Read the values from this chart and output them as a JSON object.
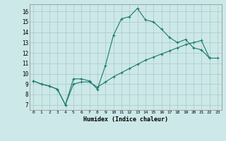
{
  "title": "",
  "xlabel": "Humidex (Indice chaleur)",
  "background_color": "#cce8e8",
  "grid_color": "#aac8c8",
  "line_color": "#1a7a6e",
  "xlim": [
    -0.5,
    23.5
  ],
  "ylim": [
    6.5,
    16.7
  ],
  "yticks": [
    7,
    8,
    9,
    10,
    11,
    12,
    13,
    14,
    15,
    16
  ],
  "xticks": [
    0,
    1,
    2,
    3,
    4,
    5,
    6,
    7,
    8,
    9,
    10,
    11,
    12,
    13,
    14,
    15,
    16,
    17,
    18,
    19,
    20,
    21,
    22,
    23
  ],
  "series1_x": [
    0,
    1,
    2,
    3,
    4,
    5,
    6,
    7,
    8,
    9,
    10,
    11,
    12,
    13,
    14,
    15,
    16,
    17,
    18,
    19,
    20,
    21,
    22
  ],
  "series1_y": [
    9.3,
    9.0,
    8.8,
    8.5,
    7.0,
    9.5,
    9.5,
    9.3,
    8.5,
    10.8,
    13.7,
    15.3,
    15.5,
    16.3,
    15.2,
    15.0,
    14.3,
    13.5,
    13.0,
    13.3,
    12.5,
    12.3,
    11.5
  ],
  "series2_x": [
    0,
    1,
    2,
    3,
    4,
    5,
    6,
    7,
    8,
    9,
    10,
    11,
    12,
    13,
    14,
    15,
    16,
    17,
    18,
    19,
    20,
    21,
    22,
    23
  ],
  "series2_y": [
    9.3,
    9.0,
    8.8,
    8.5,
    7.0,
    9.0,
    9.2,
    9.2,
    8.7,
    9.2,
    9.7,
    10.1,
    10.5,
    10.9,
    11.3,
    11.6,
    11.9,
    12.2,
    12.5,
    12.8,
    13.0,
    13.2,
    11.5,
    11.5
  ]
}
